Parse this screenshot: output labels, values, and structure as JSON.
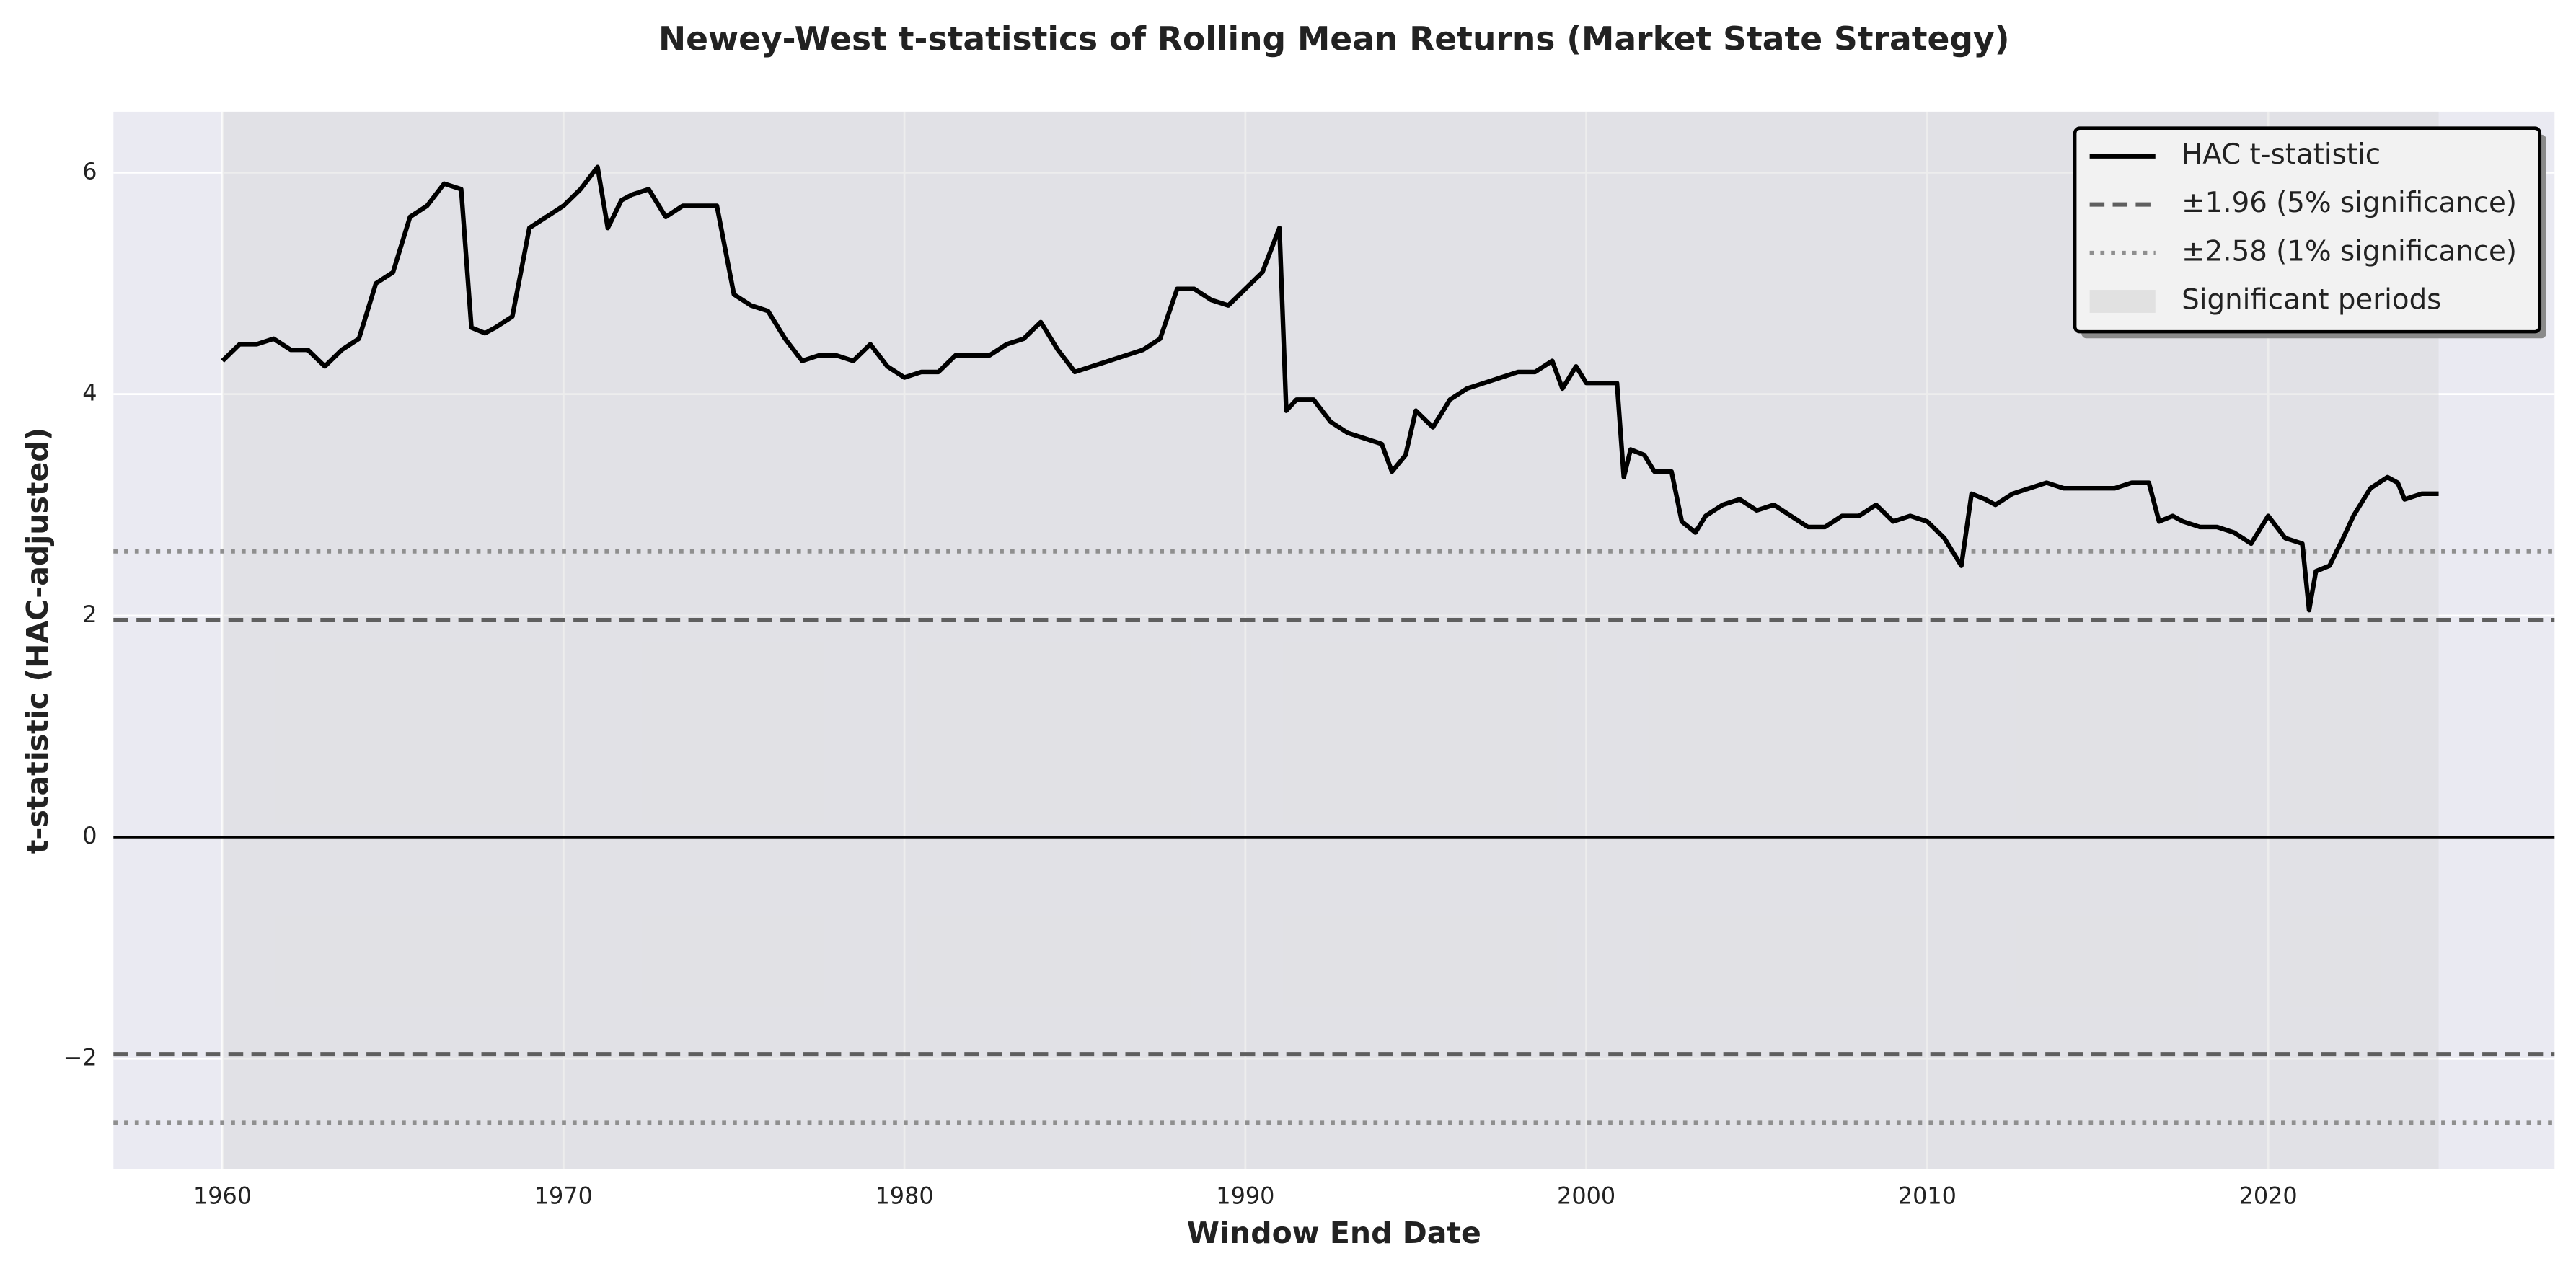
{
  "chart_data": {
    "type": "line",
    "title": "Newey-West t-statistics of Rolling Mean Returns (Market State Strategy)",
    "x_label": "Window End Date",
    "y_label": "t-statistic (HAC-adjusted)",
    "xlim": [
      1956.8,
      2028.4
    ],
    "ylim": [
      -3,
      6.55
    ],
    "xticks": [
      1960,
      1970,
      1980,
      1990,
      2000,
      2010,
      2020
    ],
    "yticks": [
      {
        "value": -2,
        "label": "−2"
      },
      0,
      2,
      4,
      6
    ],
    "grid": true,
    "legend": "upper right",
    "zero_line": {
      "value": 0,
      "color": "#000000"
    },
    "series": [
      {
        "name": "HAC t-statistic",
        "color": "#000000",
        "x": [
          1960.0,
          1960.5,
          1961.0,
          1961.5,
          1962.0,
          1962.5,
          1963.0,
          1963.5,
          1964.0,
          1964.5,
          1965.0,
          1965.5,
          1966.0,
          1966.5,
          1967.0,
          1967.3,
          1967.7,
          1968.0,
          1968.5,
          1969.0,
          1969.5,
          1970.0,
          1970.5,
          1971.0,
          1971.3,
          1971.7,
          1972.0,
          1972.5,
          1973.0,
          1973.5,
          1974.0,
          1974.5,
          1975.0,
          1975.5,
          1976.0,
          1976.5,
          1977.0,
          1977.5,
          1978.0,
          1978.5,
          1979.0,
          1979.5,
          1980.0,
          1980.5,
          1981.0,
          1981.5,
          1982.0,
          1982.5,
          1983.0,
          1983.5,
          1984.0,
          1984.5,
          1985.0,
          1985.5,
          1986.0,
          1986.5,
          1987.0,
          1987.5,
          1988.0,
          1988.5,
          1989.0,
          1989.5,
          1990.0,
          1990.5,
          1991.0,
          1991.2,
          1991.5,
          1992.0,
          1992.5,
          1993.0,
          1993.5,
          1994.0,
          1994.3,
          1994.7,
          1995.0,
          1995.5,
          1996.0,
          1996.5,
          1997.0,
          1997.5,
          1998.0,
          1998.5,
          1999.0,
          1999.3,
          1999.7,
          2000.0,
          2000.5,
          2000.9,
          2001.1,
          2001.3,
          2001.7,
          2002.0,
          2002.5,
          2002.8,
          2003.2,
          2003.5,
          2004.0,
          2004.5,
          2005.0,
          2005.5,
          2006.0,
          2006.5,
          2007.0,
          2007.5,
          2008.0,
          2008.5,
          2009.0,
          2009.5,
          2010.0,
          2010.5,
          2011.0,
          2011.3,
          2011.7,
          2012.0,
          2012.5,
          2013.0,
          2013.5,
          2014.0,
          2014.5,
          2015.0,
          2015.5,
          2016.0,
          2016.5,
          2016.8,
          2017.2,
          2017.5,
          2018.0,
          2018.5,
          2019.0,
          2019.5,
          2020.0,
          2020.5,
          2021.0,
          2021.2,
          2021.4,
          2021.8,
          2022.2,
          2022.5,
          2023.0,
          2023.5,
          2023.8,
          2024.0,
          2024.5,
          2025.0
        ],
        "values": [
          4.3,
          4.45,
          4.45,
          4.5,
          4.4,
          4.4,
          4.25,
          4.4,
          4.5,
          5.0,
          5.1,
          5.6,
          5.7,
          5.9,
          5.85,
          4.6,
          4.55,
          4.6,
          4.7,
          5.5,
          5.6,
          5.7,
          5.85,
          6.05,
          5.5,
          5.75,
          5.8,
          5.85,
          5.6,
          5.7,
          5.7,
          5.7,
          4.9,
          4.8,
          4.75,
          4.5,
          4.3,
          4.35,
          4.35,
          4.3,
          4.45,
          4.25,
          4.15,
          4.2,
          4.2,
          4.35,
          4.35,
          4.35,
          4.45,
          4.5,
          4.65,
          4.4,
          4.2,
          4.25,
          4.3,
          4.35,
          4.4,
          4.5,
          4.95,
          4.95,
          4.85,
          4.8,
          4.95,
          5.1,
          5.5,
          3.85,
          3.95,
          3.95,
          3.75,
          3.65,
          3.6,
          3.55,
          3.3,
          3.45,
          3.85,
          3.7,
          3.95,
          4.05,
          4.1,
          4.15,
          4.2,
          4.2,
          4.3,
          4.05,
          4.25,
          4.1,
          4.1,
          4.1,
          3.25,
          3.5,
          3.45,
          3.3,
          3.3,
          2.85,
          2.75,
          2.9,
          3.0,
          3.05,
          2.95,
          3.0,
          2.9,
          2.8,
          2.8,
          2.9,
          2.9,
          3.0,
          2.85,
          2.9,
          2.85,
          2.7,
          2.45,
          3.1,
          3.05,
          3.0,
          3.1,
          3.15,
          3.2,
          3.15,
          3.15,
          3.15,
          3.15,
          3.2,
          3.2,
          2.85,
          2.9,
          2.85,
          2.8,
          2.8,
          2.75,
          2.65,
          2.9,
          2.7,
          2.65,
          2.05,
          2.4,
          2.45,
          2.7,
          2.9,
          3.15,
          3.25,
          3.2,
          3.05,
          3.1,
          3.1
        ]
      }
    ],
    "reference_lines": [
      {
        "name": "±1.96 (5% significance)",
        "values": [
          1.96,
          -1.96
        ],
        "color": "#5f5f5f",
        "style": "dashed"
      },
      {
        "name": "±2.58 (1% significance)",
        "values": [
          2.58,
          -2.58
        ],
        "color": "#8f8f8f",
        "style": "dotted"
      }
    ],
    "shaded": {
      "name": "Significant periods",
      "xrange": [
        1960,
        2025
      ],
      "color": "#d6d6d6"
    }
  }
}
